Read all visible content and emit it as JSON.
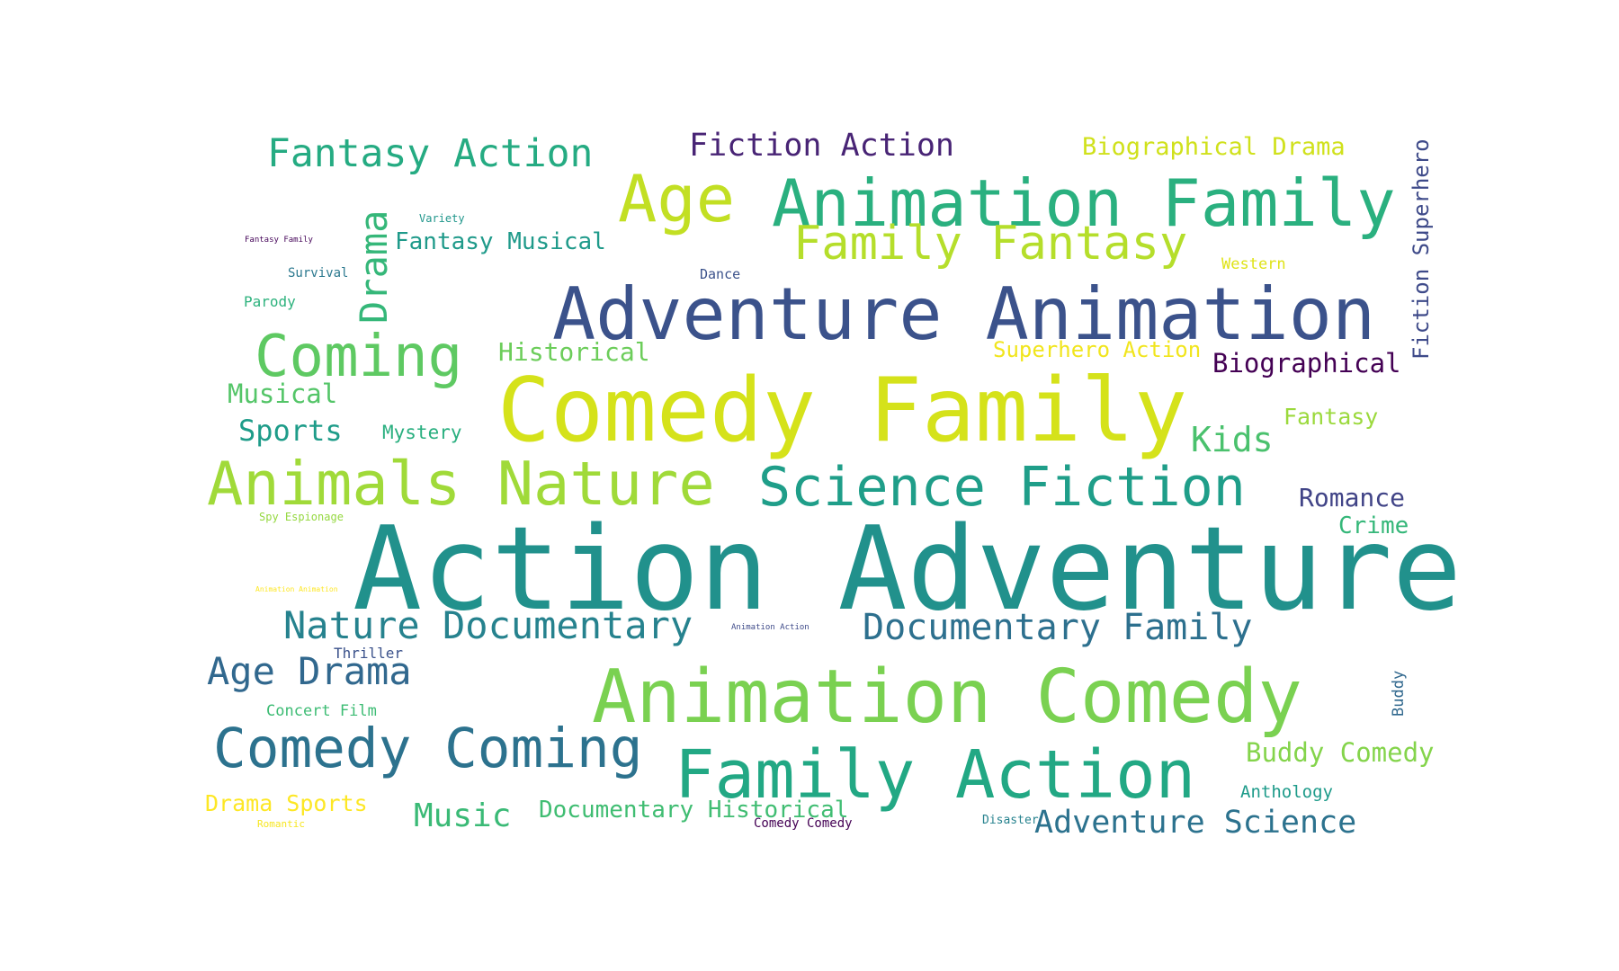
{
  "words": [
    {
      "text": "Action Adventure",
      "color": "#21918c"
    },
    {
      "text": "Comedy Family",
      "color": "#d5e21a"
    },
    {
      "text": "Adventure Animation",
      "color": "#3b528b"
    },
    {
      "text": "Animation Comedy",
      "color": "#7ad151"
    },
    {
      "text": "Family Action",
      "color": "#22a884"
    },
    {
      "text": "Animation Family",
      "color": "#2ab07f"
    },
    {
      "text": "Animals Nature",
      "color": "#a0da39"
    },
    {
      "text": "Science Fiction",
      "color": "#1f9e89"
    },
    {
      "text": "Comedy Coming",
      "color": "#2c728e"
    },
    {
      "text": "Coming",
      "color": "#5ec962"
    },
    {
      "text": "Age",
      "color": "#c2df23"
    },
    {
      "text": "Family Fantasy",
      "color": "#b5de2b"
    },
    {
      "text": "Nature Documentary",
      "color": "#26828e"
    },
    {
      "text": "Documentary Family",
      "color": "#2d708e"
    },
    {
      "text": "Fantasy Action",
      "color": "#25ab82"
    },
    {
      "text": "Age Drama",
      "color": "#31688e"
    },
    {
      "text": "Fiction Action",
      "color": "#482475"
    },
    {
      "text": "Drama",
      "color": "#35b779"
    },
    {
      "text": "Adventure Science",
      "color": "#2c728e"
    },
    {
      "text": "Buddy Comedy",
      "color": "#84d44b"
    },
    {
      "text": "Fiction Superhero",
      "color": "#3e4a89"
    },
    {
      "text": "Kids",
      "color": "#4ac16d"
    },
    {
      "text": "Music",
      "color": "#3aba76"
    },
    {
      "text": "Biographical Drama",
      "color": "#d0e11c"
    },
    {
      "text": "Biographical",
      "color": "#440154"
    },
    {
      "text": "Romance",
      "color": "#414487"
    },
    {
      "text": "Crime",
      "color": "#35b779"
    },
    {
      "text": "Documentary Historical",
      "color": "#40bd72"
    },
    {
      "text": "Fantasy Musical",
      "color": "#1f9a8a"
    },
    {
      "text": "Sports",
      "color": "#1e9c89"
    },
    {
      "text": "Musical",
      "color": "#54c568"
    },
    {
      "text": "Historical",
      "color": "#6ccd5a"
    },
    {
      "text": "Superhero Action",
      "color": "#f1e51d"
    },
    {
      "text": "Drama Sports",
      "color": "#fde725"
    },
    {
      "text": "Fantasy",
      "color": "#9bd93c"
    },
    {
      "text": "Mystery",
      "color": "#29af7f"
    },
    {
      "text": "Western",
      "color": "#dfe318"
    },
    {
      "text": "Anthology",
      "color": "#1e9b8a"
    },
    {
      "text": "Concert Film",
      "color": "#3dbc74"
    },
    {
      "text": "Thriller",
      "color": "#3b528b"
    },
    {
      "text": "Buddy",
      "color": "#31688e"
    },
    {
      "text": "Dance",
      "color": "#3b528b"
    },
    {
      "text": "Survival",
      "color": "#2a788e"
    },
    {
      "text": "Parody",
      "color": "#2db27d"
    },
    {
      "text": "Comedy Comedy",
      "color": "#440154"
    },
    {
      "text": "Disaster",
      "color": "#26828e"
    },
    {
      "text": "Variety",
      "color": "#1f968b"
    },
    {
      "text": "Spy Espionage",
      "color": "#95d840"
    },
    {
      "text": "Romantic",
      "color": "#f6e620"
    },
    {
      "text": "Fantasy Family",
      "color": "#450559"
    },
    {
      "text": "Animation Animation",
      "color": "#fde725"
    },
    {
      "text": "Animation Action",
      "color": "#3e4a89"
    }
  ]
}
